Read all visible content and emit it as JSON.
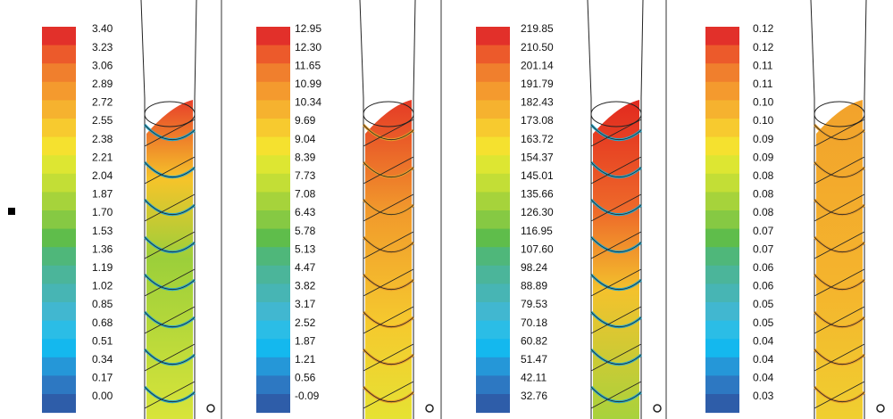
{
  "panels": [
    {
      "labels": [
        "3.40",
        "3.23",
        "3.06",
        "2.89",
        "2.72",
        "2.55",
        "2.38",
        "2.21",
        "2.04",
        "1.87",
        "1.70",
        "1.53",
        "1.36",
        "1.19",
        "1.02",
        "0.85",
        "0.68",
        "0.51",
        "0.34",
        "0.17",
        "0.00"
      ]
    },
    {
      "labels": [
        "12.95",
        "12.30",
        "11.65",
        "10.99",
        "10.34",
        "9.69",
        "9.04",
        "8.39",
        "7.73",
        "7.08",
        "6.43",
        "5.78",
        "5.13",
        "4.47",
        "3.82",
        "3.17",
        "2.52",
        "1.87",
        "1.21",
        "0.56",
        "-0.09"
      ]
    },
    {
      "labels": [
        "219.85",
        "210.50",
        "201.14",
        "191.79",
        "182.43",
        "173.08",
        "163.72",
        "154.37",
        "145.01",
        "135.66",
        "126.30",
        "116.95",
        "107.60",
        "98.24",
        "88.89",
        "79.53",
        "70.18",
        "60.82",
        "51.47",
        "42.11",
        "32.76"
      ]
    },
    {
      "labels": [
        "0.12",
        "0.12",
        "0.11",
        "0.11",
        "0.10",
        "0.10",
        "0.09",
        "0.09",
        "0.08",
        "0.08",
        "0.08",
        "0.07",
        "0.07",
        "0.06",
        "0.06",
        "0.05",
        "0.05",
        "0.04",
        "0.04",
        "0.04",
        "0.03"
      ]
    }
  ]
}
